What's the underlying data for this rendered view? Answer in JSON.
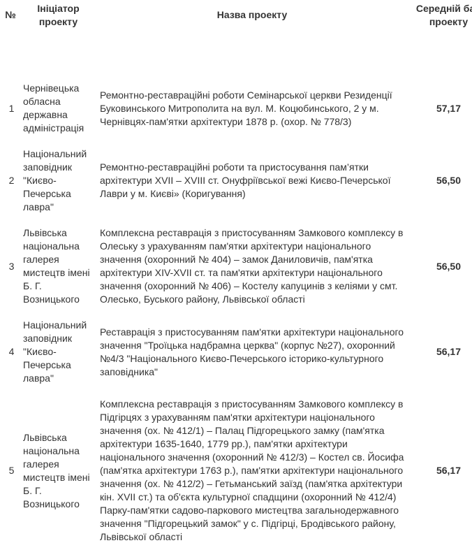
{
  "table": {
    "headers": {
      "number": "№",
      "initiator": "Ініціатор проекту",
      "name": "Назва проекту",
      "score": "Середній бал проекту"
    },
    "rows": [
      {
        "number": "1",
        "initiator": "Чернівецька обласна державна адміністрація",
        "name": "Ремонтно-реставраційні роботи Семінарської церкви Резиденції Буковинського Митрополита на вул. М. Коцюбинського, 2 у м. Чернівцях-пам'ятки архітектури 1878 р. (охор. № 778/3)",
        "score": "57,17"
      },
      {
        "number": "2",
        "initiator": "Національний заповідник \"Києво-Печерська лавра\"",
        "name": "Ремонтно-реставраційні роботи та пристосування пам’ятки архітектури XVII – XVIII ст. Онуфріївської вежі Києво-Печерської Лаври у м. Києві» (Коригування)",
        "score": "56,50"
      },
      {
        "number": "3",
        "initiator": "Львівська національна галерея мистецтв імені Б. Г. Возницького",
        "name": "Комплексна реставрація з пристосуванням Замкового комплексу в Олеську з урахуванням пам'ятки архітектури національного значення (охоронний № 404) – замок Даниловичів, пам'ятка архітектури XIV-XVII ст. та пам'ятки архітектури національного значення (охоронний № 406) – Костелу капуцинів з келіями у смт. Олесько, Буського району, Львівської області",
        "score": "56,50"
      },
      {
        "number": "4",
        "initiator": "Національний заповідник \"Києво-Печерська лавра\"",
        "name": "Реставрація з пристосуванням пам'ятки архітектури національного значення \"Троїцька надбрамна церква\" (корпус №27), охоронний №4/3 \"Національного Києво-Печерського історико-культурного заповідника\"",
        "score": "56,17"
      },
      {
        "number": "5",
        "initiator": "Львівська національна галерея мистецтв імені Б. Г. Возницького",
        "name": "Комплексна реставрація з пристосуванням Замкового комплексу в Підгірцях з урахуванням пам'ятки архітектури національного значення (ох. № 412/1) – Палац Підгорецького замку (пам'ятка архітектури 1635-1640, 1779 рр.), пам'ятки архітектури національного значення (охоронний № 412/3)  – Костел св. Йосифа (пам'ятка архітектури 1763 р.), пам'ятки архітектури національного значення (ох. № 412/2) – Гетьманський заїзд (пам'ятка архітектури кін. XVII ст.) та об'єкта культурної спадщини (охоронний № 412/4) Парку-пам'ятки  садово-паркового мистецтва загальнодержавного значення \"Підгорецький замок\" у с. Підгірці, Бродівського району, Львівської області",
        "score": "56,17"
      }
    ]
  }
}
